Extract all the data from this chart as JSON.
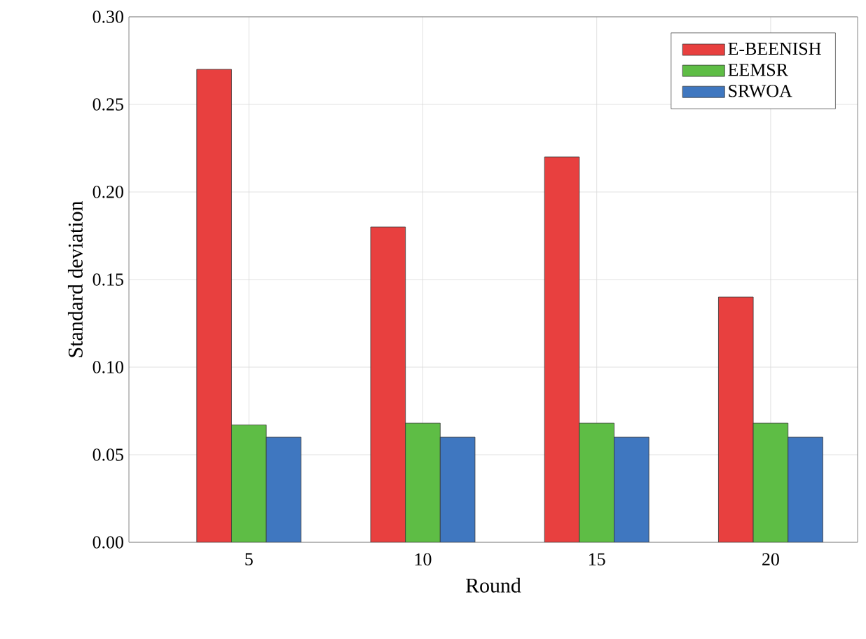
{
  "chart_data": {
    "type": "bar",
    "xlabel": "Round",
    "ylabel": "Standard deviation",
    "categories": [
      "5",
      "10",
      "15",
      "20"
    ],
    "series": [
      {
        "name": "E-BEENISH",
        "color": "#e8403f",
        "values": [
          0.27,
          0.18,
          0.22,
          0.14
        ]
      },
      {
        "name": "EEMSR",
        "color": "#5ebd45",
        "values": [
          0.067,
          0.068,
          0.068,
          0.068
        ]
      },
      {
        "name": "SRWOA",
        "color": "#3f77c0",
        "values": [
          0.06,
          0.06,
          0.06,
          0.06
        ]
      }
    ],
    "ylim": [
      0,
      0.3
    ],
    "yticks": [
      {
        "value": 0,
        "label": "0.00"
      },
      {
        "value": 0.05,
        "label": "0.05"
      },
      {
        "value": 0.1,
        "label": "0.10"
      },
      {
        "value": 0.15,
        "label": "0.15"
      },
      {
        "value": 0.2,
        "label": "0.20"
      },
      {
        "value": 0.25,
        "label": "0.25"
      },
      {
        "value": 0.3,
        "label": "0.30"
      }
    ],
    "grid": true,
    "legend": "top right"
  }
}
